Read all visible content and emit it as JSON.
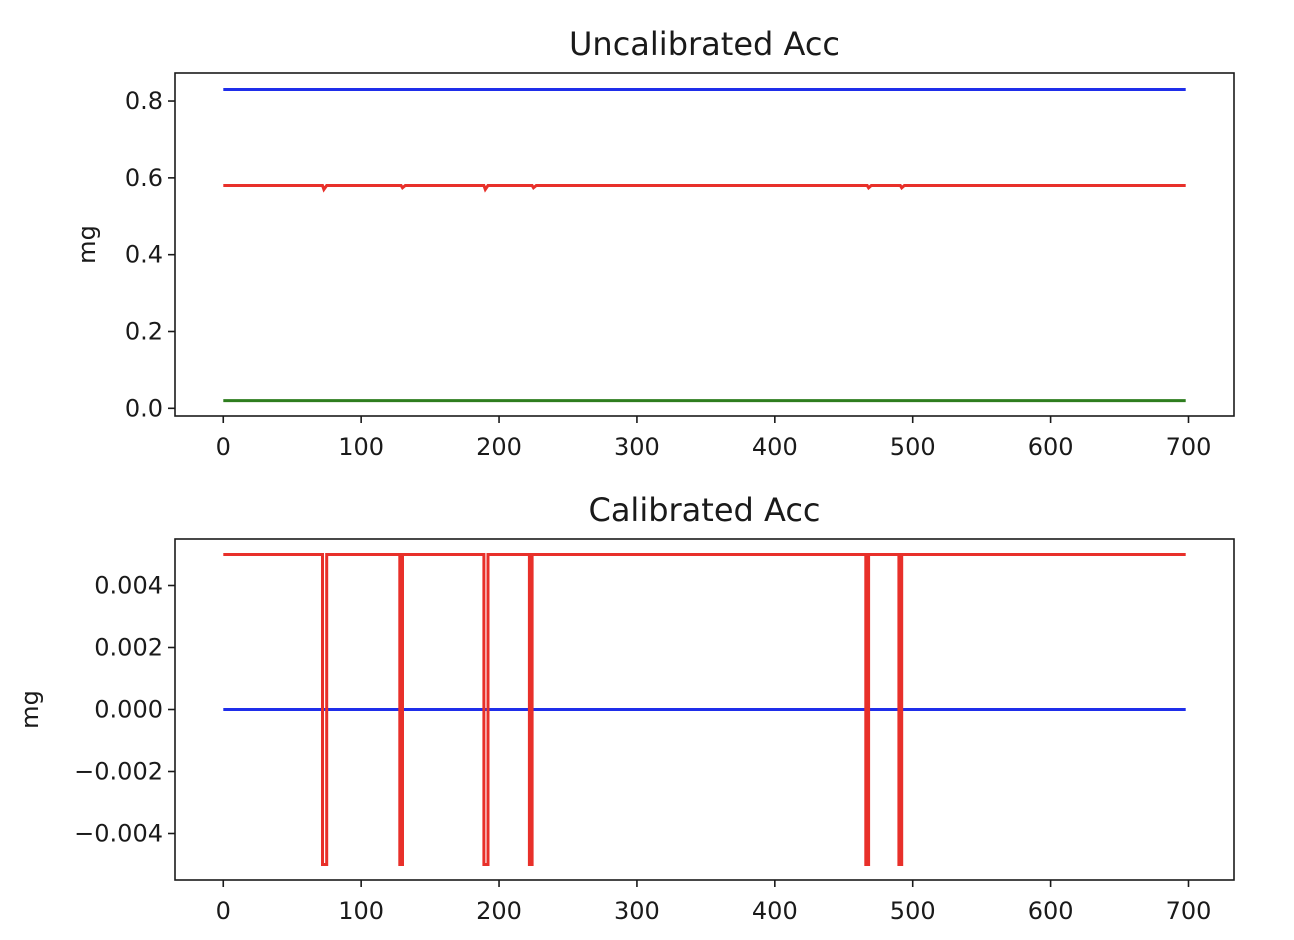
{
  "colors": {
    "blue": "#1f2eea",
    "red": "#e8302a",
    "green": "#2e7d1e"
  },
  "chart_data": [
    {
      "type": "line",
      "title": "Uncalibrated Acc",
      "xlabel": "",
      "ylabel": "mg",
      "xlim": [
        -35,
        733
      ],
      "ylim": [
        -0.02,
        0.873
      ],
      "xticks": [
        0,
        100,
        200,
        300,
        400,
        500,
        600,
        700
      ],
      "xtick_labels": [
        "0",
        "100",
        "200",
        "300",
        "400",
        "500",
        "600",
        "700"
      ],
      "yticks": [
        0.0,
        0.2,
        0.4,
        0.6,
        0.8
      ],
      "ytick_labels": [
        "0.0",
        "0.2",
        "0.4",
        "0.6",
        "0.8"
      ],
      "grid": false,
      "series": [
        {
          "color": "blue",
          "x": [
            0,
            698
          ],
          "y": [
            0.83,
            0.83
          ]
        },
        {
          "color": "red",
          "x": [
            0,
            72,
            73,
            75,
            129,
            130,
            132,
            189,
            190,
            192,
            224,
            225,
            227,
            467,
            468,
            470,
            491,
            492,
            494,
            698
          ],
          "y": [
            0.58,
            0.58,
            0.57,
            0.58,
            0.58,
            0.574,
            0.58,
            0.58,
            0.57,
            0.58,
            0.58,
            0.574,
            0.58,
            0.58,
            0.574,
            0.58,
            0.58,
            0.574,
            0.58,
            0.58
          ]
        },
        {
          "color": "green",
          "x": [
            0,
            698
          ],
          "y": [
            0.02,
            0.02
          ]
        }
      ]
    },
    {
      "type": "line",
      "title": "Calibrated Acc",
      "xlabel": "",
      "ylabel": "mg",
      "xlim": [
        -35,
        733
      ],
      "ylim": [
        -0.0055,
        0.0055
      ],
      "xticks": [
        0,
        100,
        200,
        300,
        400,
        500,
        600,
        700
      ],
      "xtick_labels": [
        "0",
        "100",
        "200",
        "300",
        "400",
        "500",
        "600",
        "700"
      ],
      "yticks": [
        -0.004,
        -0.002,
        0.0,
        0.002,
        0.004
      ],
      "ytick_labels": [
        "−0.004",
        "−0.002",
        "0.000",
        "0.002",
        "0.004"
      ],
      "grid": false,
      "series": [
        {
          "color": "blue",
          "x": [
            0,
            698
          ],
          "y": [
            0.0,
            0.0
          ]
        },
        {
          "color": "red",
          "x": [
            0,
            72,
            72,
            75,
            75,
            128,
            128,
            130,
            130,
            189,
            189,
            192,
            192,
            222,
            222,
            224,
            224,
            466,
            466,
            468,
            468,
            490,
            490,
            492,
            492,
            698
          ],
          "y": [
            0.005,
            0.005,
            -0.005,
            -0.005,
            0.005,
            0.005,
            -0.005,
            -0.005,
            0.005,
            0.005,
            -0.005,
            -0.005,
            0.005,
            0.005,
            -0.005,
            -0.005,
            0.005,
            0.005,
            -0.005,
            -0.005,
            0.005,
            0.005,
            -0.005,
            -0.005,
            0.005,
            0.005
          ]
        }
      ]
    }
  ]
}
